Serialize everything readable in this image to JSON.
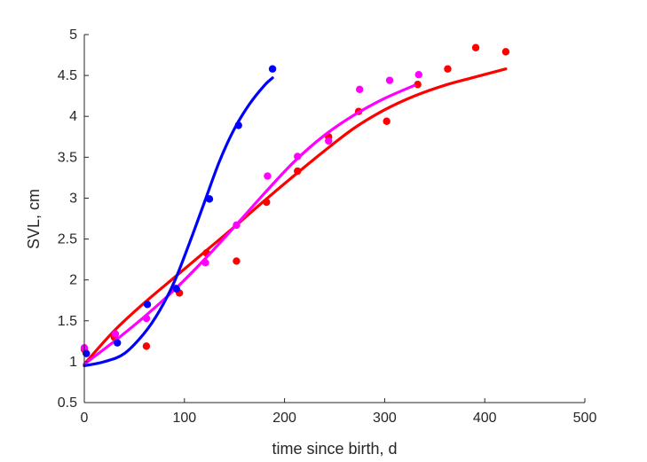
{
  "chart_data": {
    "type": "scatter",
    "title": "",
    "xlabel": "time since birth, d",
    "ylabel": "SVL, cm",
    "xlim": [
      0,
      500
    ],
    "ylim": [
      0.5,
      5
    ],
    "xticks": [
      "0",
      "100",
      "200",
      "300",
      "400",
      "500"
    ],
    "yticks": [
      "0.5",
      "1",
      "1.5",
      "2",
      "2.5",
      "3",
      "3.5",
      "4",
      "4.5",
      "5"
    ],
    "grid": false,
    "legend": "none",
    "series": [
      {
        "color": "#ff0000",
        "points": [
          [
            0,
            1.15
          ],
          [
            30,
            1.3
          ],
          [
            62,
            1.19
          ],
          [
            95,
            1.84
          ],
          [
            122,
            2.33
          ],
          [
            152,
            2.23
          ],
          [
            182,
            2.95
          ],
          [
            213,
            3.33
          ],
          [
            244,
            3.75
          ],
          [
            274,
            4.06
          ],
          [
            302,
            3.94
          ],
          [
            333,
            4.39
          ],
          [
            363,
            4.58
          ],
          [
            391,
            4.84
          ],
          [
            421,
            4.79
          ]
        ],
        "curve": [
          [
            0,
            0.97
          ],
          [
            30,
            1.38
          ],
          [
            60,
            1.72
          ],
          [
            90,
            2.03
          ],
          [
            120,
            2.34
          ],
          [
            150,
            2.65
          ],
          [
            180,
            2.97
          ],
          [
            210,
            3.28
          ],
          [
            240,
            3.58
          ],
          [
            270,
            3.86
          ],
          [
            300,
            4.08
          ],
          [
            330,
            4.25
          ],
          [
            360,
            4.38
          ],
          [
            390,
            4.48
          ],
          [
            421,
            4.58
          ]
        ]
      },
      {
        "color": "#ff00ff",
        "points": [
          [
            0,
            1.17
          ],
          [
            31,
            1.34
          ],
          [
            62,
            1.53
          ],
          [
            91,
            1.9
          ],
          [
            121,
            2.21
          ],
          [
            152,
            2.67
          ],
          [
            183,
            3.27
          ],
          [
            213,
            3.51
          ],
          [
            244,
            3.7
          ],
          [
            275,
            4.33
          ],
          [
            305,
            4.44
          ],
          [
            334,
            4.51
          ]
        ],
        "curve": [
          [
            0,
            0.97
          ],
          [
            30,
            1.25
          ],
          [
            60,
            1.55
          ],
          [
            90,
            1.88
          ],
          [
            120,
            2.25
          ],
          [
            150,
            2.65
          ],
          [
            180,
            3.06
          ],
          [
            210,
            3.45
          ],
          [
            240,
            3.77
          ],
          [
            270,
            4.02
          ],
          [
            300,
            4.22
          ],
          [
            330,
            4.38
          ]
        ]
      },
      {
        "color": "#0000ff",
        "points": [
          [
            2,
            1.1
          ],
          [
            33,
            1.23
          ],
          [
            63,
            1.7
          ],
          [
            92,
            1.89
          ],
          [
            125,
            2.99
          ],
          [
            154,
            3.89
          ],
          [
            188,
            4.58
          ]
        ],
        "curve": [
          [
            0,
            0.95
          ],
          [
            20,
            1.0
          ],
          [
            40,
            1.1
          ],
          [
            60,
            1.35
          ],
          [
            75,
            1.62
          ],
          [
            90,
            1.98
          ],
          [
            105,
            2.45
          ],
          [
            120,
            2.95
          ],
          [
            135,
            3.45
          ],
          [
            150,
            3.85
          ],
          [
            165,
            4.15
          ],
          [
            180,
            4.38
          ],
          [
            188,
            4.47
          ]
        ]
      }
    ]
  }
}
